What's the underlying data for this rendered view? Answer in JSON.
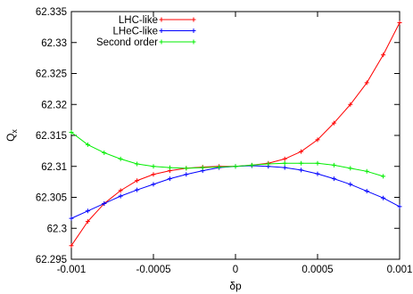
{
  "chart_data": {
    "type": "line",
    "xlabel": "δp",
    "ylabel_main": "Q",
    "ylabel_sub": "x",
    "xlim": [
      -0.001,
      0.001
    ],
    "ylim": [
      62.295,
      62.335
    ],
    "xticks": [
      -0.001,
      -0.0005,
      0,
      0.0005,
      0.001
    ],
    "xtick_labels": [
      "-0.001",
      "-0.0005",
      "0",
      "0.0005",
      "0.001"
    ],
    "yticks": [
      62.295,
      62.3,
      62.305,
      62.31,
      62.315,
      62.32,
      62.325,
      62.33,
      62.335
    ],
    "ytick_labels": [
      "62.295",
      "62.3",
      "62.305",
      "62.31",
      "62.315",
      "62.32",
      "62.325",
      "62.33",
      "62.335"
    ],
    "grid": false,
    "legend_position": "top-left",
    "series": [
      {
        "name": "LHC-like",
        "color": "#ff0000",
        "marker": "plus",
        "x": [
          -0.001,
          -0.0009,
          -0.0008,
          -0.0007,
          -0.0006,
          -0.0005,
          -0.0004,
          -0.0003,
          -0.0002,
          -0.0001,
          0,
          0.0001,
          0.0002,
          0.0003,
          0.0004,
          0.0005,
          0.0006,
          0.0007,
          0.0008,
          0.0009,
          0.001
        ],
        "y": [
          62.2972,
          62.3011,
          62.304,
          62.3061,
          62.3077,
          62.3087,
          62.3093,
          62.3097,
          62.3099,
          62.31,
          62.31,
          62.3102,
          62.3105,
          62.3112,
          62.3124,
          62.3143,
          62.317,
          62.32,
          62.3235,
          62.328,
          62.3332
        ]
      },
      {
        "name": "LHeC-like",
        "color": "#0000ff",
        "marker": "plus",
        "x": [
          -0.001,
          -0.0009,
          -0.0008,
          -0.0007,
          -0.0006,
          -0.0005,
          -0.0004,
          -0.0003,
          -0.0002,
          -0.0001,
          0,
          0.0001,
          0.0002,
          0.0003,
          0.0004,
          0.0005,
          0.0006,
          0.0007,
          0.0008,
          0.0009,
          0.001
        ],
        "y": [
          62.3016,
          62.3028,
          62.304,
          62.3052,
          62.3062,
          62.3071,
          62.308,
          62.3087,
          62.3093,
          62.3098,
          62.31,
          62.3101,
          62.31,
          62.3098,
          62.3094,
          62.3088,
          62.308,
          62.3071,
          62.306,
          62.3049,
          62.3035
        ]
      },
      {
        "name": "Second order",
        "color": "#00ee00",
        "marker": "plus",
        "x": [
          -0.001,
          -0.0009,
          -0.0008,
          -0.0007,
          -0.0006,
          -0.0005,
          -0.0004,
          -0.0003,
          -0.0002,
          -0.0001,
          0,
          0.0001,
          0.0002,
          0.0003,
          0.0004,
          0.0005,
          0.0006,
          0.0007,
          0.0008,
          0.0009
        ],
        "y": [
          62.3155,
          62.3135,
          62.3122,
          62.3112,
          62.3104,
          62.31,
          62.3098,
          62.3097,
          62.3098,
          62.3099,
          62.31,
          62.3102,
          62.3104,
          62.3105,
          62.3105,
          62.3105,
          62.3102,
          62.3097,
          62.3092,
          62.3084
        ]
      }
    ]
  }
}
